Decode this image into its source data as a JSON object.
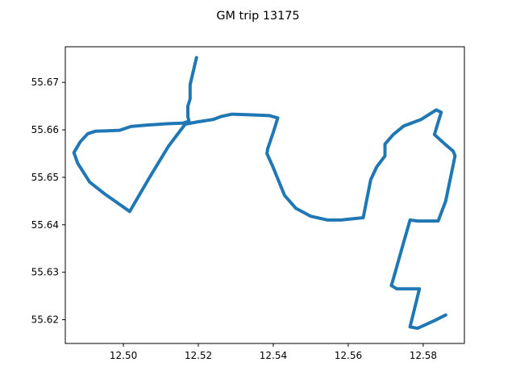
{
  "chart_data": {
    "type": "line",
    "title": "GM trip 13175",
    "xlabel": "",
    "ylabel": "",
    "xlim": [
      12.4845,
      12.591
    ],
    "ylim": [
      55.615,
      55.6775
    ],
    "x_ticks": [
      12.5,
      12.52,
      12.54,
      12.56,
      12.58
    ],
    "x_tick_labels": [
      "12.50",
      "12.52",
      "12.54",
      "12.56",
      "12.58"
    ],
    "y_ticks": [
      55.62,
      55.63,
      55.64,
      55.65,
      55.66,
      55.67
    ],
    "y_tick_labels": [
      "55.62",
      "55.63",
      "55.64",
      "55.65",
      "55.66",
      "55.67"
    ],
    "grid": false,
    "series": [
      {
        "color": "#1f77b4",
        "points": [
          [
            12.5195,
            55.6752
          ],
          [
            12.5178,
            55.6695
          ],
          [
            12.5178,
            55.6665
          ],
          [
            12.5172,
            55.665
          ],
          [
            12.5172,
            55.6628
          ],
          [
            12.5175,
            55.6618
          ],
          [
            12.5158,
            55.6614
          ],
          [
            12.512,
            55.6613
          ],
          [
            12.506,
            55.661
          ],
          [
            12.502,
            55.6607
          ],
          [
            12.499,
            55.6599
          ],
          [
            12.4925,
            55.6597
          ],
          [
            12.4905,
            55.6592
          ],
          [
            12.4885,
            55.6575
          ],
          [
            12.4868,
            55.6552
          ],
          [
            12.4878,
            55.653
          ],
          [
            12.491,
            55.649
          ],
          [
            12.495,
            55.6465
          ],
          [
            12.5017,
            55.6428
          ],
          [
            12.507,
            55.65
          ],
          [
            12.512,
            55.6565
          ],
          [
            12.5165,
            55.6612
          ],
          [
            12.52,
            55.6617
          ],
          [
            12.524,
            55.6622
          ],
          [
            12.526,
            55.6628
          ],
          [
            12.529,
            55.6633
          ],
          [
            12.533,
            55.6632
          ],
          [
            12.539,
            55.663
          ],
          [
            12.5412,
            55.6625
          ],
          [
            12.54,
            55.6595
          ],
          [
            12.5385,
            55.656
          ],
          [
            12.5383,
            55.655
          ],
          [
            12.54,
            55.652
          ],
          [
            12.543,
            55.6462
          ],
          [
            12.546,
            55.6435
          ],
          [
            12.55,
            55.6418
          ],
          [
            12.5545,
            55.641
          ],
          [
            12.558,
            55.641
          ],
          [
            12.564,
            55.6415
          ],
          [
            12.566,
            55.6495
          ],
          [
            12.5676,
            55.6522
          ],
          [
            12.5698,
            55.6545
          ],
          [
            12.5698,
            55.657
          ],
          [
            12.572,
            55.659
          ],
          [
            12.5748,
            55.6608
          ],
          [
            12.5795,
            55.6622
          ],
          [
            12.5835,
            55.6642
          ],
          [
            12.5848,
            55.6637
          ],
          [
            12.583,
            55.659
          ],
          [
            12.5858,
            55.657
          ],
          [
            12.588,
            55.6555
          ],
          [
            12.5885,
            55.6545
          ],
          [
            12.586,
            55.645
          ],
          [
            12.584,
            55.6408
          ],
          [
            12.5785,
            55.6408
          ],
          [
            12.5765,
            55.641
          ],
          [
            12.5745,
            55.6355
          ],
          [
            12.572,
            55.6285
          ],
          [
            12.5715,
            55.6272
          ],
          [
            12.573,
            55.6265
          ],
          [
            12.579,
            55.6265
          ],
          [
            12.5765,
            55.6185
          ],
          [
            12.5785,
            55.6182
          ],
          [
            12.583,
            55.6198
          ],
          [
            12.586,
            55.621
          ]
        ]
      }
    ]
  }
}
